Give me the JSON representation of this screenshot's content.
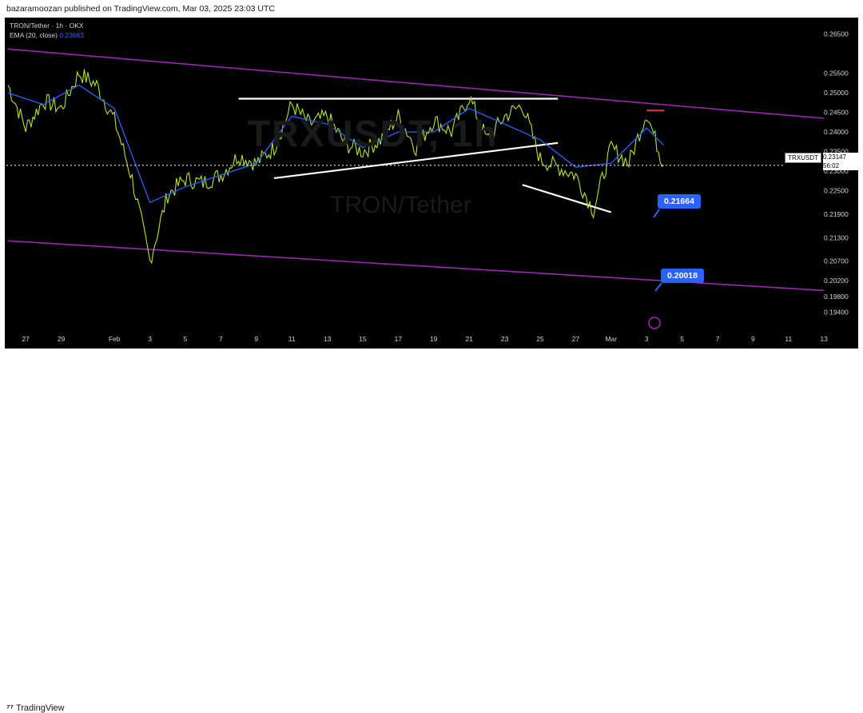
{
  "header": {
    "published": "bazaramoozan published on TradingView.com, Mar 03, 2025 23:03 UTC"
  },
  "legend": {
    "symbol": "TRON/Tether · 1h · OKX",
    "ema_label": "EMA (20, close)",
    "ema_value": "0.23663"
  },
  "watermark": {
    "ticker": "TRXUSDT, 1h",
    "name": "TRON/Tether"
  },
  "price_tag": {
    "symbol": "TRXUSDT",
    "price": "0.23147",
    "countdown": "56:02"
  },
  "callouts": [
    {
      "label": "0.21664"
    },
    {
      "label": "0.20018"
    }
  ],
  "footer": {
    "brand": "TradingView"
  },
  "colors": {
    "up": "#b5e61d",
    "ema": "#2962ff",
    "channel": "#9c27b0",
    "trend": "#ffffff",
    "resistance": "#f23645",
    "callout": "#2962ff"
  },
  "chart_data": {
    "type": "line",
    "title": "TRON/Tether · 1h · OKX",
    "y_axis_ticks": [
      "0.26500",
      "0.25500",
      "0.25000",
      "0.24500",
      "0.24000",
      "0.23500",
      "0.23000",
      "0.22500",
      "0.21900",
      "0.21300",
      "0.20700",
      "0.20200",
      "0.19800",
      "0.19400"
    ],
    "x_axis_ticks": [
      "27",
      "29",
      "Feb",
      "3",
      "5",
      "7",
      "9",
      "11",
      "13",
      "15",
      "17",
      "19",
      "21",
      "23",
      "25",
      "27",
      "Mar",
      "3",
      "5",
      "7",
      "9",
      "11",
      "13"
    ],
    "ylim": [
      0.19,
      0.268
    ],
    "current_price": 0.23147,
    "series": [
      {
        "name": "TRON/Tether",
        "points": [
          [
            "Jan 26",
            0.252
          ],
          [
            "Jan 27",
            0.241
          ],
          [
            "Jan 28",
            0.248
          ],
          [
            "Jan 29",
            0.246
          ],
          [
            "Jan 30",
            0.255
          ],
          [
            "Jan 31",
            0.252
          ],
          [
            "Feb 1",
            0.243
          ],
          [
            "Feb 2",
            0.228
          ],
          [
            "Feb 3",
            0.207
          ],
          [
            "Feb 4",
            0.224
          ],
          [
            "Feb 5",
            0.228
          ],
          [
            "Feb 6",
            0.227
          ],
          [
            "Feb 7",
            0.229
          ],
          [
            "Feb 8",
            0.234
          ],
          [
            "Feb 9",
            0.232
          ],
          [
            "Feb 10",
            0.236
          ],
          [
            "Feb 11",
            0.247
          ],
          [
            "Feb 12",
            0.242
          ],
          [
            "Feb 13",
            0.244
          ],
          [
            "Feb 14",
            0.237
          ],
          [
            "Feb 15",
            0.235
          ],
          [
            "Feb 16",
            0.238
          ],
          [
            "Feb 17",
            0.244
          ],
          [
            "Feb 18",
            0.236
          ],
          [
            "Feb 19",
            0.243
          ],
          [
            "Feb 20",
            0.24
          ],
          [
            "Feb 21",
            0.249
          ],
          [
            "Feb 22",
            0.238
          ],
          [
            "Feb 23",
            0.244
          ],
          [
            "Feb 24",
            0.247
          ],
          [
            "Feb 25",
            0.233
          ],
          [
            "Feb 26",
            0.231
          ],
          [
            "Feb 27",
            0.229
          ],
          [
            "Feb 28",
            0.22
          ],
          [
            "Mar 1",
            0.236
          ],
          [
            "Mar 2",
            0.232
          ],
          [
            "Mar 3",
            0.245
          ],
          [
            "Mar 3 23:00",
            0.23147
          ]
        ]
      },
      {
        "name": "EMA (20, close)",
        "points": [
          [
            "Jan 26",
            0.25
          ],
          [
            "Jan 28",
            0.247
          ],
          [
            "Jan 30",
            0.252
          ],
          [
            "Feb 1",
            0.246
          ],
          [
            "Feb 3",
            0.222
          ],
          [
            "Feb 5",
            0.226
          ],
          [
            "Feb 7",
            0.229
          ],
          [
            "Feb 9",
            0.232
          ],
          [
            "Feb 11",
            0.244
          ],
          [
            "Feb 13",
            0.242
          ],
          [
            "Feb 15",
            0.236
          ],
          [
            "Feb 17",
            0.24
          ],
          [
            "Feb 19",
            0.24
          ],
          [
            "Feb 21",
            0.246
          ],
          [
            "Feb 23",
            0.242
          ],
          [
            "Feb 25",
            0.238
          ],
          [
            "Feb 27",
            0.231
          ],
          [
            "Mar 1",
            0.232
          ],
          [
            "Mar 3",
            0.241
          ],
          [
            "Mar 3 23:00",
            0.23663
          ]
        ]
      }
    ],
    "annotations": [
      {
        "type": "price_label",
        "value": 0.21664,
        "label": "0.21664"
      },
      {
        "type": "price_label",
        "value": 0.20018,
        "label": "0.20018"
      },
      {
        "type": "horizontal_resistance",
        "value": 0.2485
      },
      {
        "type": "red_level",
        "value": 0.2455
      },
      {
        "type": "descending_channel_top",
        "from": [
          "Jan 26",
          0.2612
        ],
        "to": [
          "Mar 13",
          0.2435
        ]
      },
      {
        "type": "descending_channel_bottom",
        "from": [
          "Jan 26",
          0.2122
        ],
        "to": [
          "Mar 13",
          0.1995
        ]
      },
      {
        "type": "ascending_trendline",
        "from": [
          "Feb 10",
          0.2282
        ],
        "to": [
          "Feb 26",
          0.2372
        ]
      },
      {
        "type": "descending_trendline",
        "from": [
          "Feb 24",
          0.2265
        ],
        "to": [
          "Mar 1",
          0.2195
        ]
      }
    ]
  }
}
